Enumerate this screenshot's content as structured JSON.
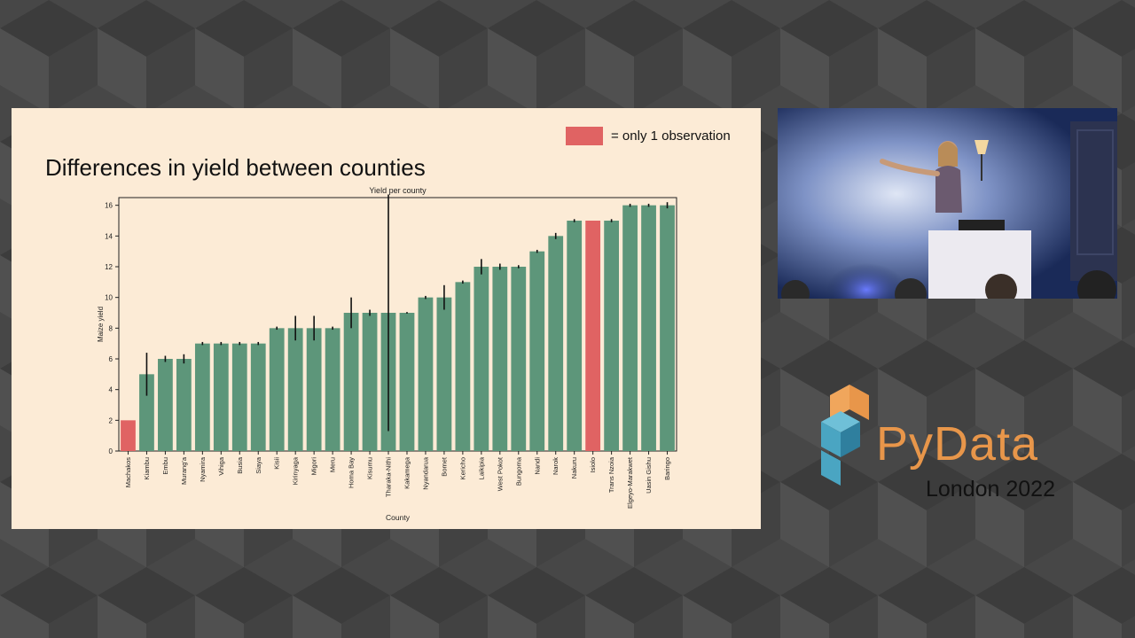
{
  "slide": {
    "title": "Differences in yield between counties",
    "legend_label": "= only 1 observation",
    "colors": {
      "background": "#fcebd6",
      "normal_bar": "#5d967a",
      "single_obs_bar": "#e06363"
    }
  },
  "branding": {
    "wordmark": "PyData",
    "event": "London 2022"
  },
  "chart_data": {
    "type": "bar",
    "title": "Yield per county",
    "xlabel": "County",
    "ylabel": "Maize yield",
    "ylim": [
      0,
      16.5
    ],
    "yticks": [
      0,
      2,
      4,
      6,
      8,
      10,
      12,
      14,
      16
    ],
    "grid": false,
    "categories": [
      "Machakos",
      "Kiambu",
      "Embu",
      "Murang'a",
      "Nyamira",
      "Vihiga",
      "Busia",
      "Siaya",
      "Kisii",
      "Kirinyaga",
      "Migori",
      "Meru",
      "Homa Bay",
      "Kisumu",
      "Tharaka-Nithi",
      "Kakamega",
      "Nyandarua",
      "Bomet",
      "Kericho",
      "Laikipia",
      "West Pokot",
      "Bungoma",
      "Nandi",
      "Narok",
      "Nakuru",
      "Isiolo",
      "Trans Nzoia",
      "Elgeyo-Marakwet",
      "Uasin Gishu",
      "Baringo"
    ],
    "values": [
      2,
      5,
      6,
      6,
      7,
      7,
      7,
      7,
      8,
      8,
      8,
      8,
      9,
      9,
      9,
      9,
      10,
      10,
      11,
      12,
      12,
      12,
      13,
      14,
      15,
      15,
      15,
      16,
      16,
      16
    ],
    "errors": [
      [
        2,
        2
      ],
      [
        3.6,
        6.4
      ],
      [
        5.8,
        6.2
      ],
      [
        5.7,
        6.3
      ],
      [
        6.9,
        7.1
      ],
      [
        6.9,
        7.1
      ],
      [
        6.9,
        7.1
      ],
      [
        6.9,
        7.1
      ],
      [
        7.9,
        8.1
      ],
      [
        7.2,
        8.8
      ],
      [
        7.2,
        8.8
      ],
      [
        7.9,
        8.1
      ],
      [
        8,
        10
      ],
      [
        8.8,
        9.2
      ],
      [
        1.3,
        16.7
      ],
      [
        8.95,
        9.05
      ],
      [
        9.9,
        10.1
      ],
      [
        9.2,
        10.8
      ],
      [
        10.9,
        11.1
      ],
      [
        11.5,
        12.5
      ],
      [
        11.8,
        12.2
      ],
      [
        11.9,
        12.1
      ],
      [
        12.9,
        13.1
      ],
      [
        13.8,
        14.2
      ],
      [
        14.9,
        15.1
      ],
      [
        15,
        15
      ],
      [
        14.9,
        15.1
      ],
      [
        15.9,
        16.1
      ],
      [
        15.9,
        16.1
      ],
      [
        15.8,
        16.2
      ]
    ],
    "single_observation": [
      "Machakos",
      "Isiolo"
    ]
  }
}
